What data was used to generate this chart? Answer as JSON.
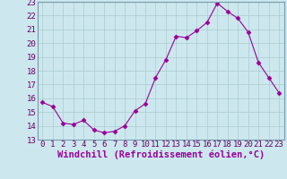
{
  "x": [
    0,
    1,
    2,
    3,
    4,
    5,
    6,
    7,
    8,
    9,
    10,
    11,
    12,
    13,
    14,
    15,
    16,
    17,
    18,
    19,
    20,
    21,
    22,
    23
  ],
  "y": [
    15.7,
    15.4,
    14.2,
    14.1,
    14.4,
    13.7,
    13.5,
    13.6,
    14.0,
    15.1,
    15.6,
    17.5,
    18.8,
    20.5,
    20.4,
    20.9,
    21.5,
    22.9,
    22.3,
    21.8,
    20.8,
    18.6,
    17.5,
    16.4
  ],
  "line_color": "#990099",
  "marker": "D",
  "marker_size": 2.5,
  "bg_color": "#cce8ee",
  "grid_color": "#aacccc",
  "xlabel": "Windchill (Refroidissement éolien,°C)",
  "xlabel_fontsize": 7.5,
  "tick_fontsize": 6.5,
  "ylim": [
    13,
    23
  ],
  "xlim": [
    -0.5,
    23.5
  ],
  "yticks": [
    13,
    14,
    15,
    16,
    17,
    18,
    19,
    20,
    21,
    22,
    23
  ],
  "xticks": [
    0,
    1,
    2,
    3,
    4,
    5,
    6,
    7,
    8,
    9,
    10,
    11,
    12,
    13,
    14,
    15,
    16,
    17,
    18,
    19,
    20,
    21,
    22,
    23
  ]
}
